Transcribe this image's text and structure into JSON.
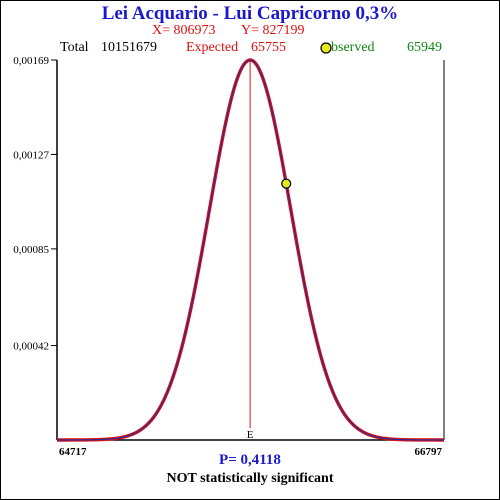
{
  "header": {
    "title": "Lei Acquario - Lui Capricorno  0,3%",
    "x_text": "X= 806973",
    "y_text": "Y= 827199",
    "total_label": "Total",
    "total_value": "10151679",
    "expected_label": "Expected",
    "expected_value": "65755",
    "observed_label": "bserved",
    "observed_value": "65949"
  },
  "footer": {
    "p_text": "P= 0,4118",
    "verdict": "NOT statistically significant"
  },
  "colors": {
    "curve_outer": "#dd1111",
    "curve_inner": "#2a2a9a",
    "expected_line": "#dd1111",
    "marker_fill": "#e8e820"
  },
  "chart_data": {
    "type": "line",
    "title": "Lei Acquario - Lui Capricorno  0,3%",
    "distribution": "normal",
    "mean": 65755,
    "xlim": [
      64717,
      66797
    ],
    "ylim": [
      0,
      0.00169
    ],
    "x_tick_labels": [
      "64717",
      "66797"
    ],
    "y_tick_labels": [
      "0,00169",
      "0,00127",
      "0,00085",
      "0,00042"
    ],
    "y_ticks": [
      0.00169,
      0.00127,
      0.00085,
      0.00042
    ],
    "peak_density": 0.00169,
    "expected": 65755,
    "expected_marker_label": "E",
    "observed": 65949,
    "observed_density": 0.00114,
    "p_value": "0,4118"
  }
}
